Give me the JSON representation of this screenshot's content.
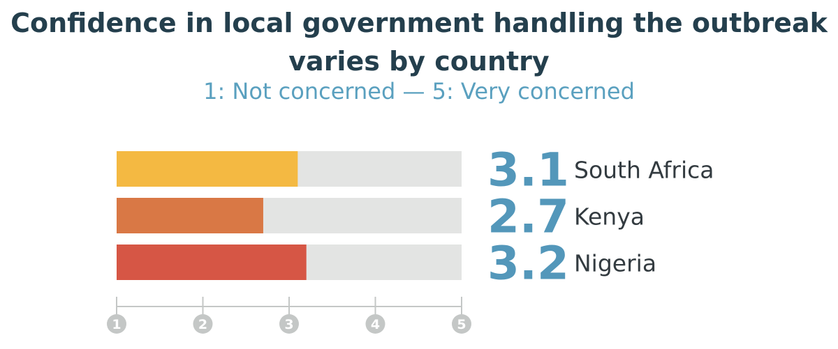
{
  "chart_data": {
    "type": "bar",
    "orientation": "horizontal",
    "title": "Confidence in local government handling the outbreak varies by country",
    "subtitle": "1: Not concerned — 5: Very concerned",
    "xlim": [
      1,
      5
    ],
    "ticks": [
      1,
      2,
      3,
      4,
      5
    ],
    "categories": [
      "South Africa",
      "Kenya",
      "Nigeria"
    ],
    "values": [
      3.1,
      2.7,
      3.2
    ],
    "value_labels": [
      "3.1",
      "2.7",
      "3.2"
    ],
    "colors": [
      "#f4b942",
      "#d97845",
      "#d65645"
    ],
    "track_color": "#e3e4e3",
    "axis_color": "#c4c7c6",
    "value_color": "#5397ba"
  }
}
